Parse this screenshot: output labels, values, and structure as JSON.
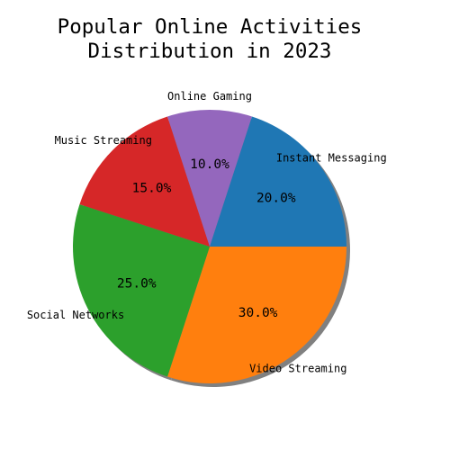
{
  "chart_data": {
    "type": "pie",
    "title_lines": [
      "Popular Online Activities",
      "Distribution in 2023"
    ],
    "title": "Popular Online Activities Distribution in 2023",
    "categories": [
      "Video Streaming",
      "Social Networks",
      "Music Streaming",
      "Online Gaming",
      "Instant Messaging"
    ],
    "values": [
      30,
      25,
      15,
      10,
      20
    ],
    "labels_pct": [
      "30.0%",
      "25.0%",
      "15.0%",
      "10.0%",
      "20.0%"
    ],
    "colors": [
      "#ff7f0e",
      "#2ca02c",
      "#d62728",
      "#9467bd",
      "#1f77b4"
    ],
    "start_angle_deg": 0,
    "direction": "clockwise",
    "shadow": true,
    "legend": "none"
  }
}
